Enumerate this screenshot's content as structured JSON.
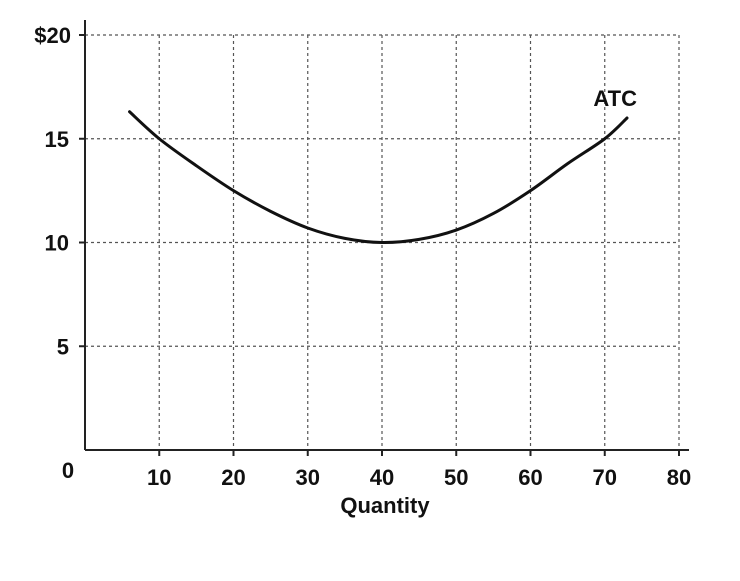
{
  "chart_data": {
    "type": "line",
    "xlabel": "Quantity",
    "ylabel": "",
    "xlim": [
      0,
      80
    ],
    "ylim": [
      0,
      20
    ],
    "x_ticks": [
      10,
      20,
      30,
      40,
      50,
      60,
      70,
      80
    ],
    "y_ticks": [
      5,
      10,
      15
    ],
    "y_top_label": "$20",
    "origin_label": "0",
    "grid": true,
    "grid_style": "dotted",
    "series": [
      {
        "name": "ATC",
        "color": "#111111",
        "points": [
          [
            6,
            16.3
          ],
          [
            10,
            15.0
          ],
          [
            15,
            13.7
          ],
          [
            20,
            12.5
          ],
          [
            25,
            11.5
          ],
          [
            30,
            10.7
          ],
          [
            35,
            10.2
          ],
          [
            40,
            10.0
          ],
          [
            45,
            10.15
          ],
          [
            50,
            10.6
          ],
          [
            55,
            11.4
          ],
          [
            60,
            12.5
          ],
          [
            65,
            13.8
          ],
          [
            70,
            15.0
          ],
          [
            73,
            16.0
          ]
        ]
      }
    ]
  }
}
